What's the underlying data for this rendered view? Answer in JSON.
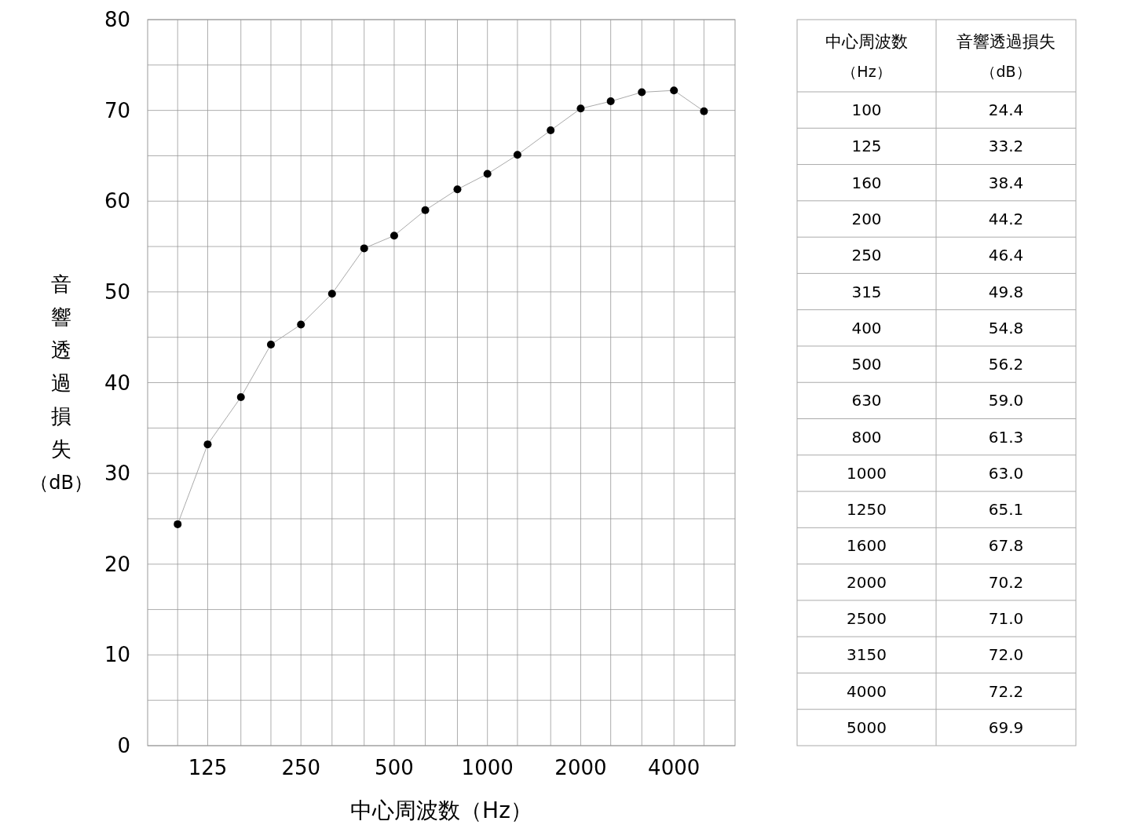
{
  "chart_data": [
    {
      "type": "line",
      "xlabel": "中心周波数（Hz）",
      "ylabel": "音響透過損失（dB）",
      "x": [
        100,
        125,
        160,
        200,
        250,
        315,
        400,
        500,
        630,
        800,
        1000,
        1250,
        1600,
        2000,
        2500,
        3150,
        4000,
        5000
      ],
      "series": [
        {
          "color": "#000000",
          "values": [
            24.4,
            33.2,
            38.4,
            44.2,
            46.4,
            49.8,
            54.8,
            56.2,
            59.0,
            61.3,
            63.0,
            65.1,
            67.8,
            70.2,
            71.0,
            72.0,
            72.2,
            69.9
          ]
        }
      ],
      "log": "x",
      "xlim": [
        80,
        6300
      ],
      "xticks": [
        {
          "value": 100,
          "label": null
        },
        125,
        {
          "value": 160,
          "label": null
        },
        {
          "value": 200,
          "label": null
        },
        250,
        {
          "value": 315,
          "label": null
        },
        {
          "value": 400,
          "label": null
        },
        500,
        {
          "value": 630,
          "label": null
        },
        {
          "value": 800,
          "label": null
        },
        1000,
        {
          "value": 1250,
          "label": null
        },
        {
          "value": 1600,
          "label": null
        },
        2000,
        {
          "value": 2500,
          "label": null
        },
        {
          "value": 3150,
          "label": null
        },
        4000,
        {
          "value": 5000,
          "label": null
        }
      ],
      "ylim": [
        0,
        80
      ],
      "yticks": [
        0,
        {
          "value": 5,
          "label": null
        },
        10,
        {
          "value": 15,
          "label": null
        },
        20,
        {
          "value": 25,
          "label": null
        },
        30,
        {
          "value": 35,
          "label": null
        },
        40,
        {
          "value": 45,
          "label": null
        },
        50,
        {
          "value": 55,
          "label": null
        },
        60,
        {
          "value": 65,
          "label": null
        },
        70,
        {
          "value": 75,
          "label": null
        },
        80
      ],
      "grid": true,
      "marker": "circle",
      "line_style": "solid"
    },
    {
      "type": "other",
      "xlabel": "中心周波数（Hz）",
      "ylabel": "音響透過損失（dB）",
      "categories": [
        "100",
        "125",
        "160",
        "200",
        "250",
        "315",
        "400",
        "500",
        "630",
        "800",
        "1000",
        "1250",
        "1600",
        "2000",
        "2500",
        "3150",
        "4000",
        "5000"
      ],
      "values": [
        24.4,
        33.2,
        38.4,
        44.2,
        46.4,
        49.8,
        54.8,
        56.2,
        59.0,
        61.3,
        63.0,
        65.1,
        67.8,
        70.2,
        71.0,
        72.0,
        72.2,
        69.9
      ],
      "value_labels": [
        "24.4",
        "33.2",
        "38.4",
        "44.2",
        "46.4",
        "49.8",
        "54.8",
        "56.2",
        "59.0",
        "61.3",
        "63.0",
        "65.1",
        "67.8",
        "70.2",
        "71.0",
        "72.0",
        "72.2",
        "69.9"
      ]
    }
  ]
}
